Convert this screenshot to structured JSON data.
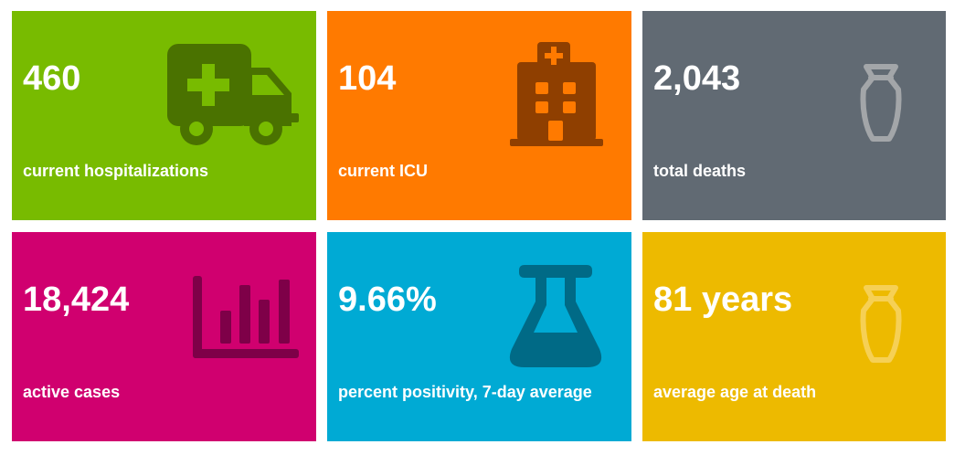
{
  "tiles": [
    {
      "value": "460",
      "label": "current hospitalizations",
      "icon": "ambulance-icon",
      "bg": "#78BB00",
      "icon_color": "#4A7200"
    },
    {
      "value": "104",
      "label": "current ICU",
      "icon": "hospital-icon",
      "bg": "#FF7A00",
      "icon_color": "#8F3F00"
    },
    {
      "value": "2,043",
      "label": "total deaths",
      "icon": "urn-icon",
      "bg": "#616A73",
      "icon_color": "#A3A6A9"
    },
    {
      "value": "18,424",
      "label": "active cases",
      "icon": "bar-chart-icon",
      "bg": "#D0006F",
      "icon_color": "#7E0048"
    },
    {
      "value": "9.66%",
      "label": "percent positivity, 7-day average",
      "icon": "flask-icon",
      "bg": "#00AAD4",
      "icon_color": "#006A86"
    },
    {
      "value": "81 years",
      "label": "average age at death",
      "icon": "urn-icon",
      "bg": "#EDBA00",
      "icon_color": "#F6D055"
    }
  ]
}
